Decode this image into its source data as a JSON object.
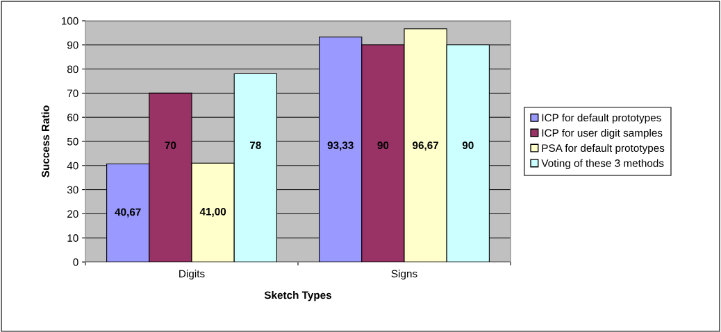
{
  "chart_data": {
    "type": "bar",
    "xlabel": "Sketch Types",
    "ylabel": "Success Ratio",
    "categories": [
      "Digits",
      "Signs"
    ],
    "series": [
      {
        "name": "ICP for default prototypes",
        "color": "#9999ff",
        "values": [
          40.67,
          93.33
        ],
        "value_labels": [
          "40,67",
          "93,33"
        ]
      },
      {
        "name": "ICP for user digit samples",
        "color": "#993366",
        "values": [
          70,
          90
        ],
        "value_labels": [
          "70",
          "90"
        ]
      },
      {
        "name": "PSA for default prototypes",
        "color": "#ffffcc",
        "values": [
          41.0,
          96.67
        ],
        "value_labels": [
          "41,00",
          "96,67"
        ]
      },
      {
        "name": "Voting of these 3 methods",
        "color": "#ccffff",
        "values": [
          78,
          90
        ],
        "value_labels": [
          "78",
          "90"
        ]
      }
    ],
    "ylim": [
      0,
      100
    ],
    "yticks": [
      0,
      10,
      20,
      30,
      40,
      50,
      60,
      70,
      80,
      90,
      100
    ],
    "grid": "y",
    "legend": "right"
  }
}
